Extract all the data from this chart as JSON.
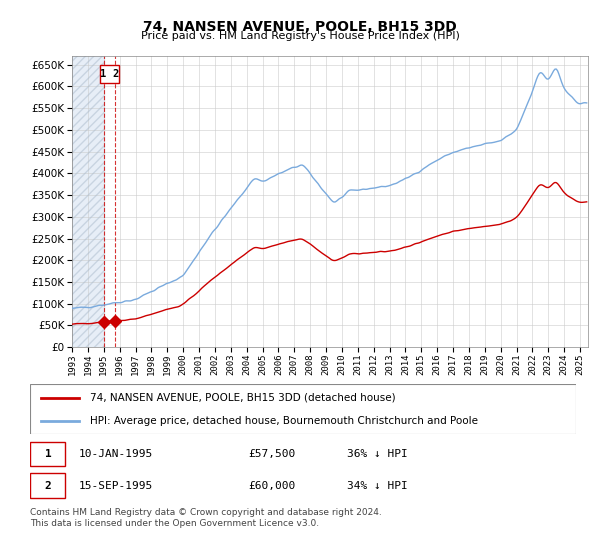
{
  "title": "74, NANSEN AVENUE, POOLE, BH15 3DD",
  "subtitle": "Price paid vs. HM Land Registry's House Price Index (HPI)",
  "ylim": [
    0,
    670000
  ],
  "yticks": [
    0,
    50000,
    100000,
    150000,
    200000,
    250000,
    300000,
    350000,
    400000,
    450000,
    500000,
    550000,
    600000,
    650000
  ],
  "xlim_start": 1993.0,
  "xlim_end": 2025.5,
  "hpi_color": "#7aaadd",
  "price_color": "#cc0000",
  "bg_color": "#ffffff",
  "grid_color": "#cccccc",
  "transaction1_x": 1995.03,
  "transaction1_y": 57500,
  "transaction2_x": 1995.71,
  "transaction2_y": 60000,
  "legend_line1": "74, NANSEN AVENUE, POOLE, BH15 3DD (detached house)",
  "legend_line2": "HPI: Average price, detached house, Bournemouth Christchurch and Poole",
  "note1_num": "1",
  "note1_date": "10-JAN-1995",
  "note1_price": "£57,500",
  "note1_hpi": "36% ↓ HPI",
  "note2_num": "2",
  "note2_date": "15-SEP-1995",
  "note2_price": "£60,000",
  "note2_hpi": "34% ↓ HPI",
  "footer": "Contains HM Land Registry data © Crown copyright and database right 2024.\nThis data is licensed under the Open Government Licence v3.0."
}
